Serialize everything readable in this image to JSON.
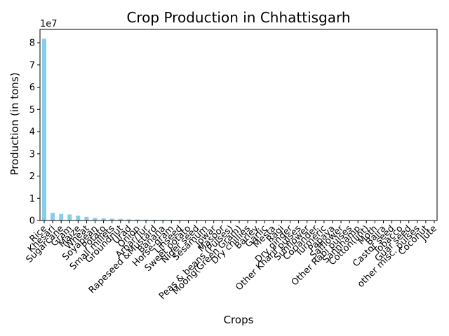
{
  "chart_data": {
    "type": "bar",
    "title": "Crop Production in Chhattisgarh",
    "xlabel": "Crops",
    "ylabel": "Production (in tons)",
    "y_multiplier_label": "1e7",
    "y_scale": 10000000,
    "ylim": [
      0,
      86000000
    ],
    "yticks": [
      0,
      1,
      2,
      3,
      4,
      5,
      6,
      7,
      8
    ],
    "bar_color": "#87ceeb",
    "categories": [
      "Rice",
      "Khesari",
      "Sugarcane",
      "Gram",
      "Maize",
      "Wheat",
      "Soyabean",
      "Potato",
      "Small millets",
      "Groundnut",
      "Urad",
      "Onion",
      "Arhar/Tur",
      "Rapeseed &Mustard",
      "Banana",
      "Horse-gram",
      "Linseed",
      "Sweet potato",
      "Niger seed",
      "Sesamum",
      "Jowar",
      "Masoor",
      "Peas & beans (Pulses)",
      "Moong(Green Gram)",
      "Dry chillies",
      "Barley",
      "Garlic",
      "Mesta",
      "Ragi",
      "Dry ginger",
      "Other Kharif pulses",
      "Sunflower",
      "Coriander",
      "Turmeric",
      "Papaya",
      "Safflower",
      "Other Rabi pulses",
      "Sannhamp",
      "Cotton(lint)",
      "Moth",
      "Bajra",
      "Castor seed",
      "Tobacco",
      "Guar seed",
      "other misc. pulses",
      "Coconut",
      "Jute"
    ],
    "values": [
      81800000,
      3500000,
      2900000,
      2700000,
      2200000,
      1600000,
      1200000,
      1000000,
      800000,
      700000,
      500000,
      420000,
      380000,
      340000,
      300000,
      270000,
      240000,
      210000,
      180000,
      150000,
      130000,
      110000,
      95000,
      85000,
      75000,
      65000,
      55000,
      45000,
      40000,
      35000,
      30000,
      25000,
      21000,
      18000,
      15000,
      12000,
      10000,
      8000,
      6500,
      5000,
      4000,
      3000,
      2500,
      2000,
      1500,
      1000,
      500
    ]
  }
}
